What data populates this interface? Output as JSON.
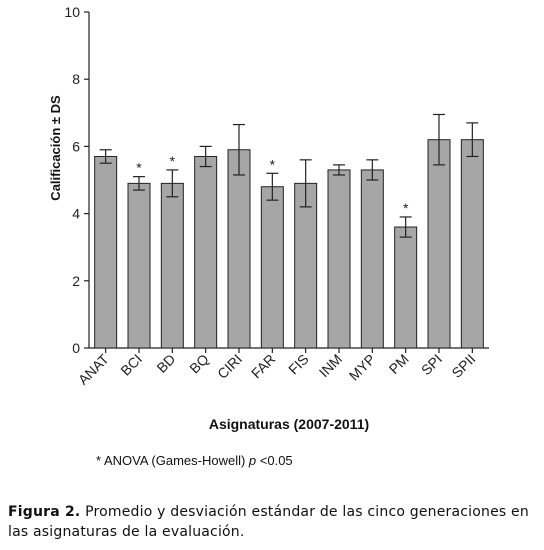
{
  "chart_data": {
    "type": "bar",
    "categories": [
      "ANAT",
      "BCI",
      "BD",
      "BQ",
      "CIRI",
      "FAR",
      "FIS",
      "INM",
      "MYP",
      "PM",
      "SPI",
      "SPII"
    ],
    "values": [
      5.7,
      4.9,
      4.9,
      5.7,
      5.9,
      4.8,
      4.9,
      5.3,
      5.3,
      3.6,
      6.2,
      6.2
    ],
    "sd": [
      0.2,
      0.2,
      0.4,
      0.3,
      0.75,
      0.4,
      0.7,
      0.15,
      0.3,
      0.3,
      0.75,
      0.5
    ],
    "significant": [
      false,
      true,
      true,
      false,
      false,
      true,
      false,
      false,
      false,
      true,
      false,
      false
    ],
    "significance_marker": "*",
    "ylabel": "Calificación ± DS",
    "xlabel": "Asignaturas (2007-2011)",
    "ylim": [
      0,
      10
    ],
    "yticks": [
      0,
      2,
      4,
      6,
      8,
      10
    ],
    "bar_color": "#a6a6a6",
    "grid": false
  },
  "note": {
    "prefix": "* ANOVA (Games-Howell) ",
    "p": "p",
    "suffix": " <0.05"
  },
  "caption": {
    "label": "Figura 2.",
    "text": " Promedio y desviación estándar de las cinco generaciones en las asignaturas de la evaluación."
  }
}
